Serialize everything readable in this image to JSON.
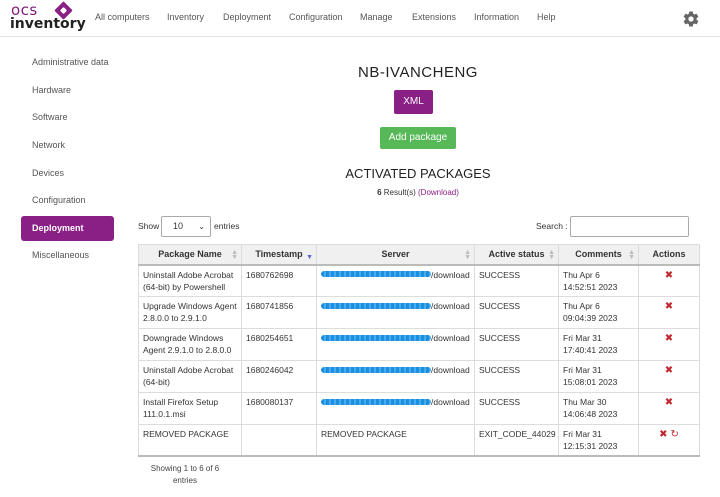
{
  "logo": {
    "top": "ocs",
    "bottom": "inventory"
  },
  "nav": [
    {
      "label": "All computers"
    },
    {
      "label": "Inventory"
    },
    {
      "label": "Deployment"
    },
    {
      "label": "Configuration"
    },
    {
      "label": "Manage"
    },
    {
      "label": "Extensions"
    },
    {
      "label": "Information"
    },
    {
      "label": "Help"
    }
  ],
  "sidebar": [
    {
      "label": "Administrative data"
    },
    {
      "label": "Hardware"
    },
    {
      "label": "Software"
    },
    {
      "label": "Network"
    },
    {
      "label": "Devices"
    },
    {
      "label": "Configuration"
    },
    {
      "label": "Deployment",
      "active": true
    },
    {
      "label": "Miscellaneous"
    }
  ],
  "device": {
    "name": "NB-IVANCHENG"
  },
  "buttons": {
    "xml": "XML",
    "add_package": "Add package"
  },
  "section": {
    "title": "ACTIVATED PACKAGES",
    "result_count": "6",
    "result_suffix": "Result(s)",
    "download": "(Download)"
  },
  "controls": {
    "show": "Show",
    "page_size": "10",
    "entries": "entries",
    "search": "Search :"
  },
  "table": {
    "headers": [
      "Package Name",
      "Timestamp",
      "Server",
      "Active status",
      "Comments",
      "Actions"
    ],
    "rows": [
      {
        "name": "Uninstall Adobe Acrobat (64-bit) by Powershell",
        "timestamp": "1680762698",
        "server_suffix": "/download",
        "status": "SUCCESS",
        "comment": "Thu Apr 6 14:52:51 2023"
      },
      {
        "name": "Upgrade Windows Agent 2.8.0.0 to 2.9.1.0",
        "timestamp": "1680741856",
        "server_suffix": "/download",
        "status": "SUCCESS",
        "comment": "Thu Apr 6 09:04:39 2023"
      },
      {
        "name": "Downgrade Windows Agent 2.9.1.0 to 2.8.0.0",
        "timestamp": "1680254651",
        "server_suffix": "/download",
        "status": "SUCCESS",
        "comment": "Fri Mar 31 17:40:41 2023"
      },
      {
        "name": "Uninstall Adobe Acrobat (64-bit)",
        "timestamp": "1680246042",
        "server_suffix": "/download",
        "status": "SUCCESS",
        "comment": "Fri Mar 31 15:08:01 2023"
      },
      {
        "name": "Install Firefox Setup 111.0.1.msi",
        "timestamp": "1680080137",
        "server_suffix": "/download",
        "status": "SUCCESS",
        "comment": "Thu Mar 30 14:06:48 2023"
      },
      {
        "name": "REMOVED PACKAGE",
        "timestamp": "",
        "server": "REMOVED PACKAGE",
        "status": "EXIT_CODE_44029",
        "comment": "Fri Mar 31 12:15:31 2023"
      }
    ]
  },
  "footer": {
    "showing": "Showing 1 to 6 of 6 entries"
  },
  "colors": {
    "brand": "#8a1f86",
    "success": "#56b857",
    "delete": "#c0262e",
    "redaction": "#1a8fe0"
  },
  "icons": {
    "settings": "gear-icon",
    "delete": "x-icon",
    "reload": "reload-icon"
  }
}
